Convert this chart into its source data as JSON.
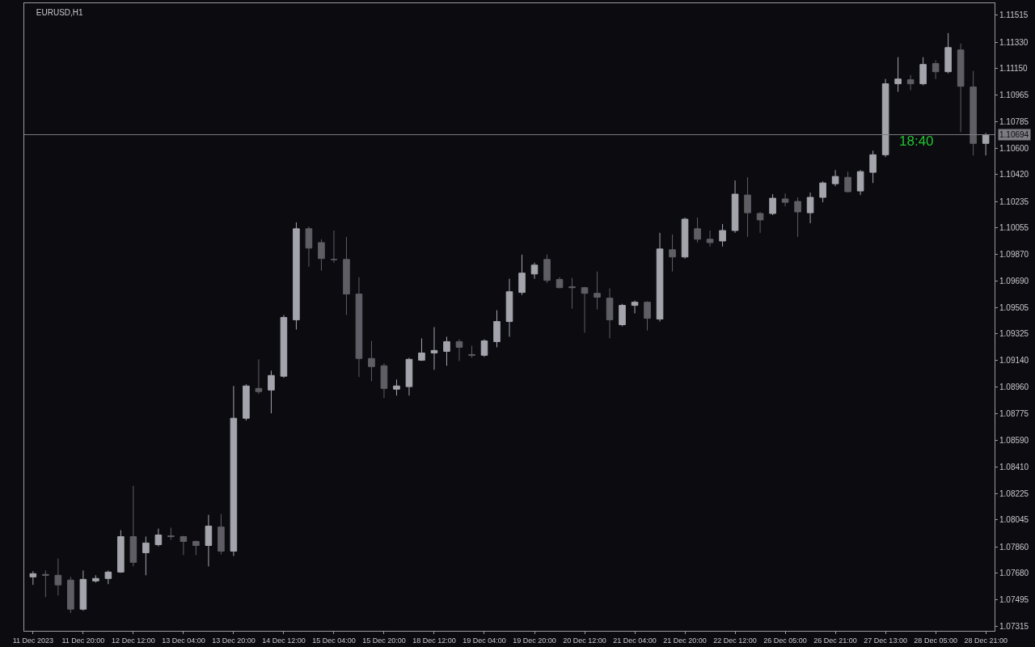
{
  "chart_data": {
    "type": "candlestick",
    "title": "EURUSD,H1",
    "colors": [
      "#a4a4ac",
      "#5e5e64",
      "#5e5e64",
      "#5e5e64",
      "#a4a4ac",
      "#a4a4ac",
      "#a4a4ac",
      "#a4a4ac",
      "#5e5e64",
      "#a4a4ac",
      "#a4a4ac",
      "#5e5e64",
      "#5e5e64",
      "#5e5e64",
      "#a4a4ac",
      "#5e5e64",
      "#a4a4ac",
      "#a4a4ac",
      "#5e5e64",
      "#a4a4ac",
      "#a4a4ac",
      "#a4a4ac",
      "#5e5e64",
      "#5e5e64",
      "#5e5e64",
      "#5e5e64",
      "#5e5e64",
      "#5e5e64",
      "#5e5e64",
      "#a4a4ac",
      "#a4a4ac",
      "#a4a4ac",
      "#a4a4ac",
      "#a4a4ac",
      "#5e5e64",
      "#5e5e64",
      "#a4a4ac",
      "#a4a4ac",
      "#a4a4ac",
      "#a4a4ac",
      "#a4a4ac",
      "#5e5e64",
      "#5e5e64",
      "#5e5e64",
      "#5e5e64",
      "#5e5e64",
      "#5e5e64",
      "#a4a4ac",
      "#a4a4ac",
      "#5e5e64",
      "#a4a4ac",
      "#5e5e64",
      "#a4a4ac",
      "#5e5e64",
      "#5e5e64",
      "#a4a4ac",
      "#a4a4ac",
      "#5e5e64",
      "#5e5e64",
      "#a4a4ac",
      "#5e5e64",
      "#5e5e64",
      "#a4a4ac",
      "#a4a4ac",
      "#a4a4ac",
      "#5e5e64",
      "#a4a4ac",
      "#a4a4ac",
      "#a4a4ac",
      "#a4a4ac",
      "#5e5e64",
      "#a4a4ac",
      "#5e5e64",
      "#a4a4ac",
      "#5e5e64",
      "#5e5e64",
      "#a4a4ac"
    ],
    "categories": [
      "11 Dec 2023",
      null,
      null,
      null,
      "11 Dec 20:00",
      null,
      null,
      null,
      "12 Dec 12:00",
      null,
      null,
      null,
      "13 Dec 04:00",
      null,
      null,
      null,
      "13 Dec 20:00",
      null,
      null,
      null,
      "14 Dec 12:00",
      null,
      null,
      null,
      "15 Dec 04:00",
      null,
      null,
      null,
      "15 Dec 20:00",
      null,
      null,
      null,
      "18 Dec 12:00",
      null,
      null,
      null,
      "19 Dec 04:00",
      null,
      null,
      null,
      "19 Dec 20:00",
      null,
      null,
      null,
      "20 Dec 12:00",
      null,
      null,
      null,
      "21 Dec 04:00",
      null,
      null,
      null,
      "21 Dec 20:00",
      null,
      null,
      null,
      "22 Dec 12:00",
      null,
      null,
      null,
      "26 Dec 05:00",
      null,
      null,
      null,
      "26 Dec 21:00",
      null,
      null,
      null,
      "27 Dec 13:00",
      null,
      null,
      null,
      "28 Dec 05:00",
      null,
      null,
      null,
      "28 Dec 21:00"
    ],
    "ohlc": [
      [
        1.07653,
        1.07692,
        1.07598,
        1.07675
      ],
      [
        1.0767,
        1.07697,
        1.07514,
        1.07664
      ],
      [
        1.07664,
        1.0778,
        1.07525,
        1.07598
      ],
      [
        1.07631,
        1.07653,
        1.07404,
        1.07431
      ],
      [
        1.07431,
        1.07697,
        1.0742,
        1.07636
      ],
      [
        1.07625,
        1.07664,
        1.07614,
        1.07642
      ],
      [
        1.07642,
        1.07697,
        1.07603,
        1.07686
      ],
      [
        1.07686,
        1.07974,
        1.07681,
        1.0793
      ],
      [
        1.0793,
        1.08279,
        1.07725,
        1.07753
      ],
      [
        1.07819,
        1.0793,
        1.07664,
        1.07886
      ],
      [
        1.07875,
        1.07985,
        1.07863,
        1.07941
      ],
      [
        1.07935,
        1.07991,
        1.07908,
        1.0793
      ],
      [
        1.0793,
        1.07935,
        1.07803,
        1.07897
      ],
      [
        1.07897,
        1.07902,
        1.07803,
        1.07869
      ],
      [
        1.07869,
        1.0808,
        1.07725,
        1.08002
      ],
      [
        1.07996,
        1.08085,
        1.07808,
        1.0783
      ],
      [
        1.0783,
        1.08966,
        1.07797,
        1.08744
      ],
      [
        1.08744,
        1.08977,
        1.08728,
        1.08966
      ],
      [
        1.08949,
        1.09149,
        1.08911,
        1.08927
      ],
      [
        1.08938,
        1.09071,
        1.08778,
        1.09038
      ],
      [
        1.09033,
        1.09454,
        1.09022,
        1.09437
      ],
      [
        1.09421,
        1.10091,
        1.09354,
        1.10047
      ],
      [
        1.10047,
        1.10063,
        1.09786,
        1.09914
      ],
      [
        1.09952,
        1.09975,
        1.09759,
        1.09842
      ],
      [
        1.09836,
        1.10035,
        1.09814,
        1.09836
      ],
      [
        1.09836,
        1.09991,
        1.09454,
        1.09598
      ],
      [
        1.09598,
        1.09714,
        1.09027,
        1.09155
      ],
      [
        1.09155,
        1.09276,
        1.08999,
        1.09099
      ],
      [
        1.09105,
        1.09121,
        1.08883,
        1.08949
      ],
      [
        1.08944,
        1.0901,
        1.089,
        1.08966
      ],
      [
        1.08961,
        1.0916,
        1.089,
        1.09149
      ],
      [
        1.09143,
        1.09293,
        1.09138,
        1.09193
      ],
      [
        1.09193,
        1.09371,
        1.09077,
        1.0921
      ],
      [
        1.09204,
        1.09304,
        1.09105,
        1.09271
      ],
      [
        1.09271,
        1.09287,
        1.09138,
        1.09232
      ],
      [
        1.09182,
        1.09243,
        1.0916,
        1.09177
      ],
      [
        1.09177,
        1.09287,
        1.09166,
        1.09276
      ],
      [
        1.09271,
        1.09487,
        1.09232,
        1.09409
      ],
      [
        1.09409,
        1.09703,
        1.09304,
        1.09614
      ],
      [
        1.09609,
        1.09869,
        1.09592,
        1.09742
      ],
      [
        1.09736,
        1.09814,
        1.09703,
        1.09797
      ],
      [
        1.09836,
        1.09869,
        1.09675,
        1.09692
      ],
      [
        1.09698,
        1.09714,
        1.09637,
        1.09642
      ],
      [
        1.09648,
        1.09709,
        1.09498,
        1.09642
      ],
      [
        1.09642,
        1.09648,
        1.09332,
        1.09603
      ],
      [
        1.09603,
        1.09753,
        1.09492,
        1.09576
      ],
      [
        1.0957,
        1.09637,
        1.09293,
        1.09421
      ],
      [
        1.09387,
        1.09531,
        1.09376,
        1.0952
      ],
      [
        1.0952,
        1.09553,
        1.09465,
        1.09542
      ],
      [
        1.09542,
        1.09548,
        1.09348,
        1.09431
      ],
      [
        1.09426,
        1.10019,
        1.09409,
        1.09908
      ],
      [
        1.09903,
        1.10008,
        1.09753,
        1.09853
      ],
      [
        1.09853,
        1.10124,
        1.09842,
        1.10113
      ],
      [
        1.10047,
        1.10124,
        1.09952,
        1.09975
      ],
      [
        1.09975,
        1.10035,
        1.09925,
        1.09952
      ],
      [
        1.09963,
        1.1008,
        1.09925,
        1.10035
      ],
      [
        1.10035,
        1.10379,
        1.10019,
        1.10285
      ],
      [
        1.10279,
        1.10401,
        1.09991,
        1.10157
      ],
      [
        1.10152,
        1.10163,
        1.10019,
        1.10108
      ],
      [
        1.10152,
        1.10285,
        1.10141,
        1.10257
      ],
      [
        1.10252,
        1.1029,
        1.10202,
        1.10229
      ],
      [
        1.10235,
        1.10263,
        1.09991,
        1.10163
      ],
      [
        1.10157,
        1.10296,
        1.10085,
        1.10263
      ],
      [
        1.10263,
        1.10373,
        1.10229,
        1.10362
      ],
      [
        1.10357,
        1.10451,
        1.1034,
        1.10407
      ],
      [
        1.10401,
        1.1044,
        1.10296,
        1.10302
      ],
      [
        1.10307,
        1.10451,
        1.10279,
        1.1044
      ],
      [
        1.10435,
        1.10584,
        1.10362,
        1.10556
      ],
      [
        1.10556,
        1.11077,
        1.1054,
        1.11044
      ],
      [
        1.11044,
        1.11227,
        1.10989,
        1.11077
      ],
      [
        1.11072,
        1.11105,
        1.11,
        1.11044
      ],
      [
        1.11044,
        1.11227,
        1.11033,
        1.11177
      ],
      [
        1.11183,
        1.11205,
        1.11077,
        1.11127
      ],
      [
        1.11127,
        1.11393,
        1.11116,
        1.11293
      ],
      [
        1.11277,
        1.11321,
        1.10712,
        1.11027
      ],
      [
        1.11022,
        1.11133,
        1.10551,
        1.10634
      ],
      [
        1.10634,
        1.10706,
        1.10551,
        1.10694
      ]
    ],
    "ylim": [
      1.07282,
      1.11598
    ],
    "yticks": [
      1.07315,
      1.07495,
      {
        "value": 1.0768,
        "label": "1.07680"
      },
      {
        "value": 1.0786,
        "label": "1.07860"
      },
      1.08045,
      1.08225,
      {
        "value": 1.0841,
        "label": "1.08410"
      },
      {
        "value": 1.0859,
        "label": "1.08590"
      },
      1.08775,
      {
        "value": 1.0896,
        "label": "1.08960"
      },
      {
        "value": 1.0914,
        "label": "1.09140"
      },
      1.09325,
      1.09505,
      {
        "value": 1.0969,
        "label": "1.09690"
      },
      {
        "value": 1.0987,
        "label": "1.09870"
      },
      1.10055,
      1.10235,
      {
        "value": 1.1042,
        "label": "1.10420"
      },
      {
        "value": 1.106,
        "label": "1.10600"
      },
      1.10785,
      1.10965,
      {
        "value": 1.1115,
        "label": "1.11150"
      },
      {
        "value": 1.1133,
        "label": "1.11330"
      },
      1.11515
    ],
    "ref_lines": [
      {
        "axis": "y",
        "value": 1.10694,
        "label": "1.10694",
        "color": "#7c7c82"
      }
    ],
    "annotations": [
      "18:40"
    ]
  }
}
